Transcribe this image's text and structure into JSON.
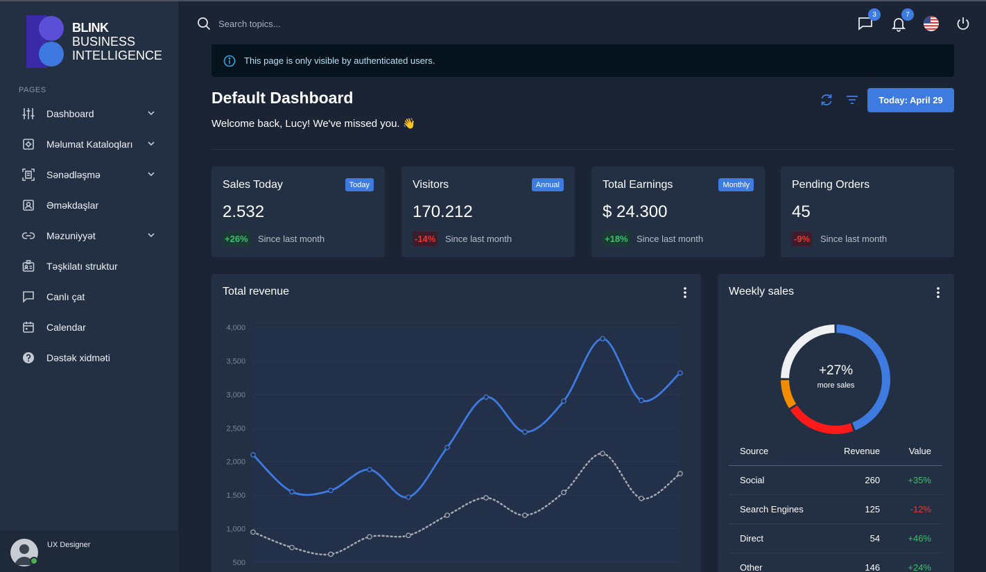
{
  "brand": {
    "line1": "BLINK",
    "line2": "BUSINESS",
    "line3": "INTELLIGENCE"
  },
  "sidebar": {
    "section_label": "PAGES",
    "items": [
      {
        "label": "Dashboard",
        "icon": "sliders-icon",
        "expandable": true
      },
      {
        "label": "Məlumat Kataloqları",
        "icon": "settings-box-icon",
        "expandable": true
      },
      {
        "label": "Sənədləşmə",
        "icon": "document-scan-icon",
        "expandable": true
      },
      {
        "label": "Əməkdaşlar",
        "icon": "user-card-icon",
        "expandable": false
      },
      {
        "label": "Məzuniyyət",
        "icon": "link-icon",
        "expandable": true
      },
      {
        "label": "Təşkilatı struktur",
        "icon": "id-badge-icon",
        "expandable": false
      },
      {
        "label": "Canlı çat",
        "icon": "chat-icon",
        "expandable": false
      },
      {
        "label": "Calendar",
        "icon": "calendar-icon",
        "expandable": false
      },
      {
        "label": "Dəstək xidməti",
        "icon": "help-circle-icon",
        "expandable": false
      }
    ],
    "user": {
      "role": "UX Designer",
      "status": "online"
    }
  },
  "header": {
    "search_placeholder": "Search topics...",
    "messages_count": "3",
    "notifications_count": "7",
    "language": "flag-us-icon"
  },
  "alert": {
    "text": "This page is only visible by authenticated users."
  },
  "page": {
    "title": "Default Dashboard",
    "welcome": "Welcome back, Lucy! We've missed you. 👋",
    "date_button": "Today: April 29"
  },
  "stats": [
    {
      "title": "Sales Today",
      "badge": "Today",
      "value": "2.532",
      "change": "+26%",
      "trend": "pos",
      "since": "Since last month"
    },
    {
      "title": "Visitors",
      "badge": "Annual",
      "value": "170.212",
      "change": "-14%",
      "trend": "neg",
      "since": "Since last month"
    },
    {
      "title": "Total Earnings",
      "badge": "Monthly",
      "value": "$ 24.300",
      "change": "+18%",
      "trend": "pos",
      "since": "Since last month"
    },
    {
      "title": "Pending Orders",
      "badge": "",
      "value": "45",
      "change": "-9%",
      "trend": "neg",
      "since": "Since last month"
    }
  ],
  "revenue": {
    "title": "Total revenue",
    "chart_data": {
      "type": "line",
      "y_ticks": [
        "4,000",
        "3,500",
        "3,000",
        "2,500",
        "2,000",
        "1,500",
        "1,000",
        "500"
      ],
      "ylim": [
        500,
        4000
      ],
      "series": [
        {
          "values": [
            2100,
            1550,
            1570,
            1880,
            1470,
            2210,
            2960,
            2440,
            2900,
            3830,
            2910,
            3320
          ],
          "color": "#3e7be0",
          "style": "solid"
        },
        {
          "values": [
            950,
            720,
            620,
            880,
            900,
            1200,
            1460,
            1200,
            1540,
            2120,
            1450,
            1820
          ],
          "color": "#a6a9b0",
          "style": "dotted"
        }
      ]
    }
  },
  "weekly": {
    "title": "Weekly sales",
    "center_value": "+27%",
    "center_label": "more sales",
    "chart_data": {
      "type": "pie",
      "segments": [
        {
          "value": 260,
          "color": "#3e7be0"
        },
        {
          "value": 125,
          "color": "#ff1a1a"
        },
        {
          "value": 54,
          "color": "#f28c00"
        },
        {
          "value": 146,
          "color": "#eef0f2"
        }
      ]
    },
    "table": {
      "headers": [
        "Source",
        "Revenue",
        "Value"
      ],
      "rows": [
        {
          "source": "Social",
          "revenue": "260",
          "value": "+35%",
          "trend": "pos"
        },
        {
          "source": "Search Engines",
          "revenue": "125",
          "value": "-12%",
          "trend": "neg"
        },
        {
          "source": "Direct",
          "revenue": "54",
          "value": "+46%",
          "trend": "pos"
        },
        {
          "source": "Other",
          "revenue": "146",
          "value": "+24%",
          "trend": "pos"
        }
      ]
    }
  },
  "colors": {
    "accent": "#3e7be0",
    "sidebar_bg": "#233044",
    "page_bg": "#1b2435",
    "card_bg": "#233044",
    "positive": "#3fbf6e",
    "negative": "#e53935"
  }
}
